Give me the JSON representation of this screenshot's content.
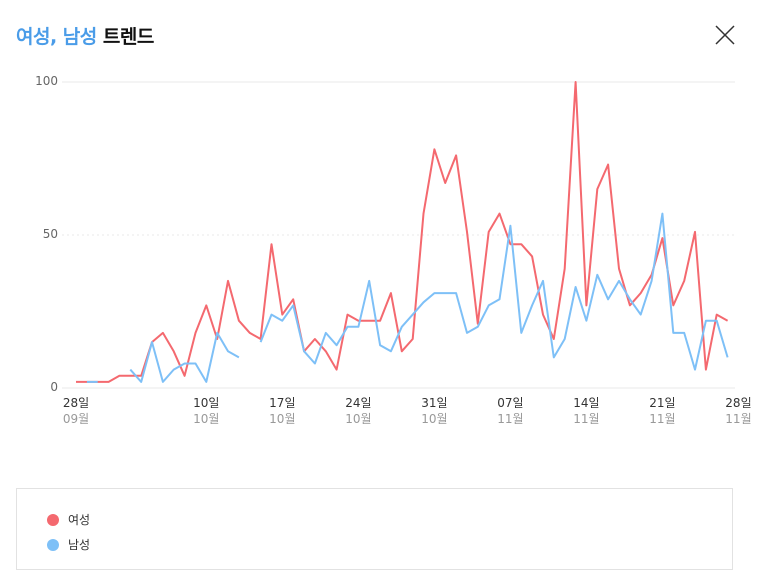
{
  "header": {
    "title_highlight": "여성, 남성",
    "title_rest": "트렌드",
    "close_icon": "close-icon"
  },
  "colors": {
    "female": "#f4696f",
    "male": "#7ec0f7",
    "title_accent": "#4a9ce8",
    "grid": "#e8e8e8"
  },
  "legend": {
    "items": [
      {
        "label": "여성",
        "color": "#f4696f"
      },
      {
        "label": "남성",
        "color": "#7ec0f7"
      }
    ]
  },
  "axis": {
    "y_ticks": [
      "100",
      "50",
      "0"
    ],
    "x_ticks": [
      {
        "day": "28일",
        "month": "09월"
      },
      {
        "day": "10일",
        "month": "10월"
      },
      {
        "day": "17일",
        "month": "10월"
      },
      {
        "day": "24일",
        "month": "10월"
      },
      {
        "day": "31일",
        "month": "10월"
      },
      {
        "day": "07일",
        "month": "11월"
      },
      {
        "day": "14일",
        "month": "11월"
      },
      {
        "day": "21일",
        "month": "11월"
      },
      {
        "day": "28일",
        "month": "11월"
      }
    ]
  },
  "chart_data": {
    "type": "line",
    "title": "여성, 남성 트렌드",
    "xlabel": "",
    "ylabel": "",
    "ylim": [
      0,
      100
    ],
    "y_ticks": [
      0,
      50,
      100
    ],
    "grid": true,
    "legend_position": "bottom",
    "x_start": "09-28",
    "x_step_days": 1,
    "x_tick_labels": [
      "28일 09월",
      "10일 10월",
      "17일 10월",
      "24일 10월",
      "31일 10월",
      "07일 11월",
      "14일 11월",
      "21일 11월",
      "28일 11월"
    ],
    "series": [
      {
        "name": "여성",
        "color": "#f4696f",
        "values": [
          2,
          2,
          2,
          2,
          4,
          4,
          4,
          15,
          18,
          12,
          4,
          18,
          27,
          16,
          35,
          22,
          18,
          16,
          47,
          24,
          29,
          12,
          16,
          12,
          6,
          24,
          22,
          22,
          22,
          31,
          12,
          16,
          57,
          78,
          67,
          76,
          51,
          21,
          51,
          57,
          47,
          47,
          43,
          24,
          16,
          39,
          100,
          27,
          65,
          73,
          39,
          27,
          31,
          37,
          49,
          27,
          35,
          51,
          6,
          24,
          22
        ]
      },
      {
        "name": "남성",
        "color": "#7ec0f7",
        "values": [
          null,
          2,
          2,
          null,
          null,
          6,
          2,
          15,
          2,
          6,
          8,
          8,
          2,
          18,
          12,
          10,
          null,
          15,
          24,
          22,
          27,
          12,
          8,
          18,
          14,
          20,
          20,
          35,
          14,
          12,
          20,
          24,
          28,
          31,
          31,
          31,
          18,
          20,
          27,
          29,
          53,
          18,
          27,
          35,
          10,
          16,
          33,
          22,
          37,
          29,
          35,
          29,
          24,
          35,
          57,
          18,
          18,
          6,
          22,
          22,
          10
        ]
      }
    ]
  }
}
